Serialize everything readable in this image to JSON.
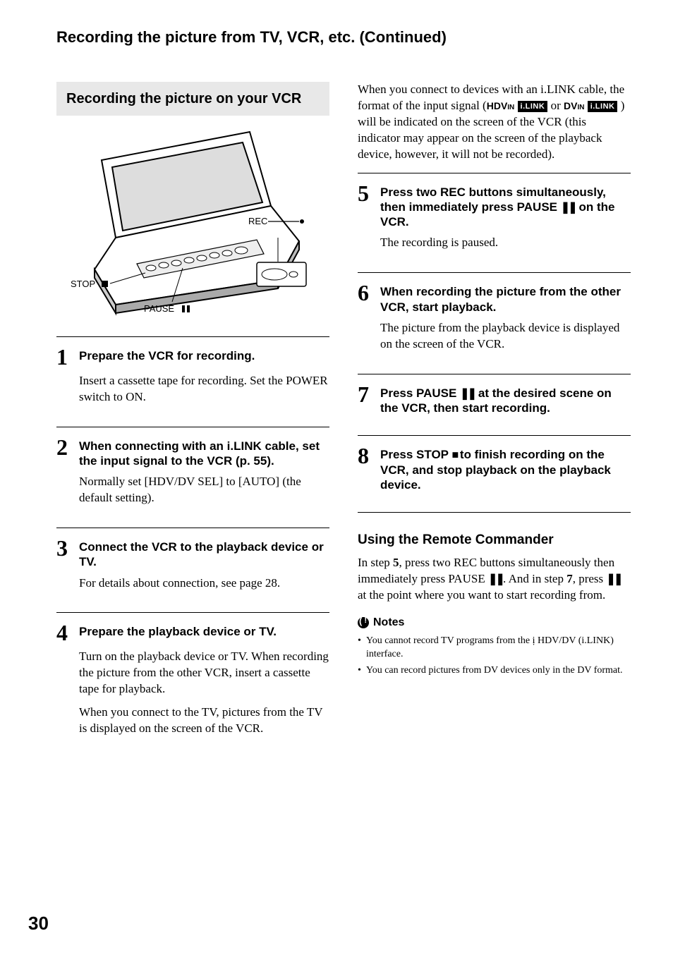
{
  "pageNumber": "30",
  "continuedHeading": "Recording the picture from TV, VCR, etc. (Continued)",
  "sectionBoxTitle": "Recording the picture on your VCR",
  "figure": {
    "labels": {
      "stop": "STOP",
      "pause": "PAUSE",
      "rec": "REC"
    }
  },
  "leftSteps": [
    {
      "num": "1",
      "title": "Prepare the VCR for recording.",
      "body": [
        "Insert a cassette tape for recording. Set the POWER switch to ON."
      ]
    },
    {
      "num": "2",
      "title": "When connecting with an i.LINK cable, set the input signal to the VCR (p. 55).",
      "body": [
        "Normally set [HDV/DV SEL] to [AUTO] (the default setting)."
      ]
    },
    {
      "num": "3",
      "title": "Connect the VCR to the playback device or TV.",
      "body": [
        "For details about connection, see page 28."
      ]
    },
    {
      "num": "4",
      "title": "Prepare the playback device or TV.",
      "body": [
        "Turn on the playback device or TV. When recording the picture from the other VCR, insert a cassette tape for playback.",
        "When you connect to the TV, pictures from the TV is displayed on the screen of the VCR."
      ]
    }
  ],
  "rightIntro": {
    "pre": "When you connect to devices with an i.LINK cable, the format of the input signal (",
    "sig1a": "HDV",
    "sig1b": "IN",
    "box": "i.LINK",
    "mid": " or ",
    "sig2a": "DV",
    "sig2b": "IN",
    "post": " ) will be indicated on the screen of the VCR (this indicator may appear on the screen of the playback device, however, it will not be recorded)."
  },
  "rightSteps": [
    {
      "num": "5",
      "title_parts": [
        "Press two REC buttons simultaneously, then immediately press PAUSE ",
        "PAUSE_GLYPH",
        " on the VCR."
      ],
      "body": [
        "The recording is paused."
      ]
    },
    {
      "num": "6",
      "title_parts": [
        "When recording the picture from the other VCR, start playback."
      ],
      "body": [
        "The picture from the playback device is displayed on the screen of the VCR."
      ]
    },
    {
      "num": "7",
      "title_parts": [
        "Press PAUSE ",
        "PAUSE_GLYPH",
        " at the desired scene on the VCR, then start recording."
      ],
      "body": []
    },
    {
      "num": "8",
      "title_parts": [
        "Press STOP ",
        "STOP_GLYPH",
        " to finish recording on the VCR, and stop playback on the playback device."
      ],
      "body": []
    }
  ],
  "remote": {
    "heading": "Using the Remote Commander",
    "para_parts": [
      "In step ",
      {
        "b": "5"
      },
      ", press two REC buttons simultaneously then immediately press PAUSE ",
      "PAUSE_GLYPH",
      ". And in step ",
      {
        "b": "7"
      },
      ", press ",
      "PAUSE_GLYPH",
      " at the point where you want to start recording from."
    ]
  },
  "notes": {
    "heading": "Notes",
    "items": [
      "You cannot record TV programs from the ị HDV/DV (i.LINK) interface.",
      "You can record pictures from DV devices only in the DV format."
    ]
  }
}
